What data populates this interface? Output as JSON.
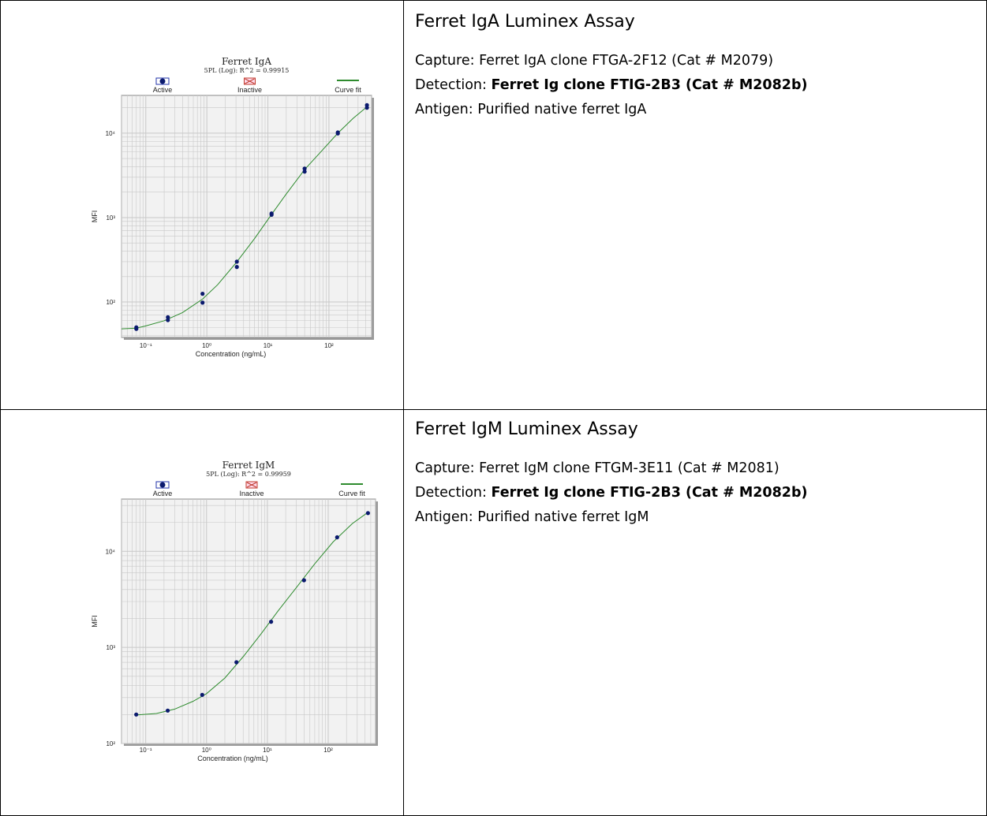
{
  "panels": [
    {
      "title": "Ferret IgA Luminex Assay",
      "capture_label": "Capture:",
      "capture_value": "Ferret IgA clone FTGA-2F12 (Cat # M2079)",
      "detection_label": "Detection:",
      "detection_value": "Ferret Ig clone FTIG-2B3 (Cat # M2082b)",
      "antigen_label": "Antigen:",
      "antigen_value": "Purified native ferret IgA"
    },
    {
      "title": "Ferret IgM Luminex Assay",
      "capture_label": "Capture:",
      "capture_value": "Ferret IgM clone FTGM-3E11 (Cat # M2081)",
      "detection_label": "Detection:",
      "detection_value": "Ferret Ig clone FTIG-2B3 (Cat # M2082b)",
      "antigen_label": "Antigen:",
      "antigen_value": "Purified native ferret IgM"
    }
  ],
  "chart_data": [
    {
      "type": "scatter",
      "title": "Ferret IgA",
      "subtitle": "5PL (Log): R^2 = 0.99915",
      "xlabel": "Concentration (ng/mL)",
      "ylabel": "MFI",
      "xscale": "log",
      "yscale": "log",
      "xlim": [
        0.04,
        500
      ],
      "ylim": [
        38,
        28000
      ],
      "xticks": [
        0.1,
        1,
        10,
        100
      ],
      "xtick_labels": [
        "10⁻¹",
        "10⁰",
        "10¹",
        "10²"
      ],
      "yticks": [
        100,
        1000,
        10000
      ],
      "ytick_labels": [
        "10²",
        "10³",
        "10⁴"
      ],
      "grid": true,
      "legend": [
        "Active",
        "Inactive",
        "Curve fit"
      ],
      "legend_placement": "top",
      "colors": {
        "points": "#0b1a6e",
        "curve": "#2e8b2e",
        "inactive": "#c0392b",
        "plot_bg": "#f2f2f2",
        "grid": "#c8c8c8"
      },
      "series": [
        {
          "name": "Active",
          "kind": "points",
          "x": [
            0.07,
            0.07,
            0.23,
            0.23,
            0.85,
            0.85,
            3.1,
            3.1,
            11.5,
            11.5,
            40,
            40,
            140,
            140,
            420,
            420
          ],
          "y": [
            50,
            48,
            66,
            61,
            125,
            98,
            300,
            260,
            1120,
            1080,
            3800,
            3500,
            10200,
            9900,
            21500,
            20000
          ]
        },
        {
          "name": "Curve fit",
          "kind": "line",
          "x": [
            0.04,
            0.07,
            0.1,
            0.2,
            0.4,
            0.85,
            1.5,
            3,
            6,
            11.5,
            20,
            40,
            80,
            140,
            250,
            420
          ],
          "y": [
            48,
            49,
            52,
            60,
            75,
            108,
            160,
            290,
            560,
            1090,
            1900,
            3700,
            6400,
            10000,
            15000,
            20500
          ]
        }
      ]
    },
    {
      "type": "scatter",
      "title": "Ferret IgM",
      "subtitle": "5PL (Log): R^2 = 0.99959",
      "xlabel": "Concentration (ng/mL)",
      "ylabel": "MFI",
      "xscale": "log",
      "yscale": "log",
      "xlim": [
        0.04,
        600
      ],
      "ylim": [
        100,
        35000
      ],
      "xticks": [
        0.1,
        1,
        10,
        100
      ],
      "xtick_labels": [
        "10⁻¹",
        "10⁰",
        "10¹",
        "10²"
      ],
      "yticks": [
        100,
        1000,
        10000
      ],
      "ytick_labels": [
        "10²",
        "10³",
        "10⁴"
      ],
      "grid": true,
      "legend": [
        "Active",
        "Inactive",
        "Curve fit"
      ],
      "legend_placement": "top",
      "colors": {
        "points": "#0b1a6e",
        "curve": "#2e8b2e",
        "inactive": "#c0392b",
        "plot_bg": "#f2f2f2",
        "grid": "#c8c8c8"
      },
      "series": [
        {
          "name": "Active",
          "kind": "points",
          "x": [
            0.07,
            0.23,
            0.85,
            3.1,
            11.5,
            40,
            140,
            450
          ],
          "y": [
            200,
            220,
            320,
            700,
            1850,
            5000,
            14000,
            25000
          ]
        },
        {
          "name": "Curve fit",
          "kind": "line",
          "x": [
            0.07,
            0.15,
            0.3,
            0.6,
            1,
            2,
            4,
            8,
            15,
            30,
            60,
            120,
            250,
            450
          ],
          "y": [
            198,
            205,
            228,
            275,
            330,
            480,
            800,
            1400,
            2400,
            4200,
            7400,
            12500,
            19500,
            25500
          ]
        }
      ]
    }
  ]
}
